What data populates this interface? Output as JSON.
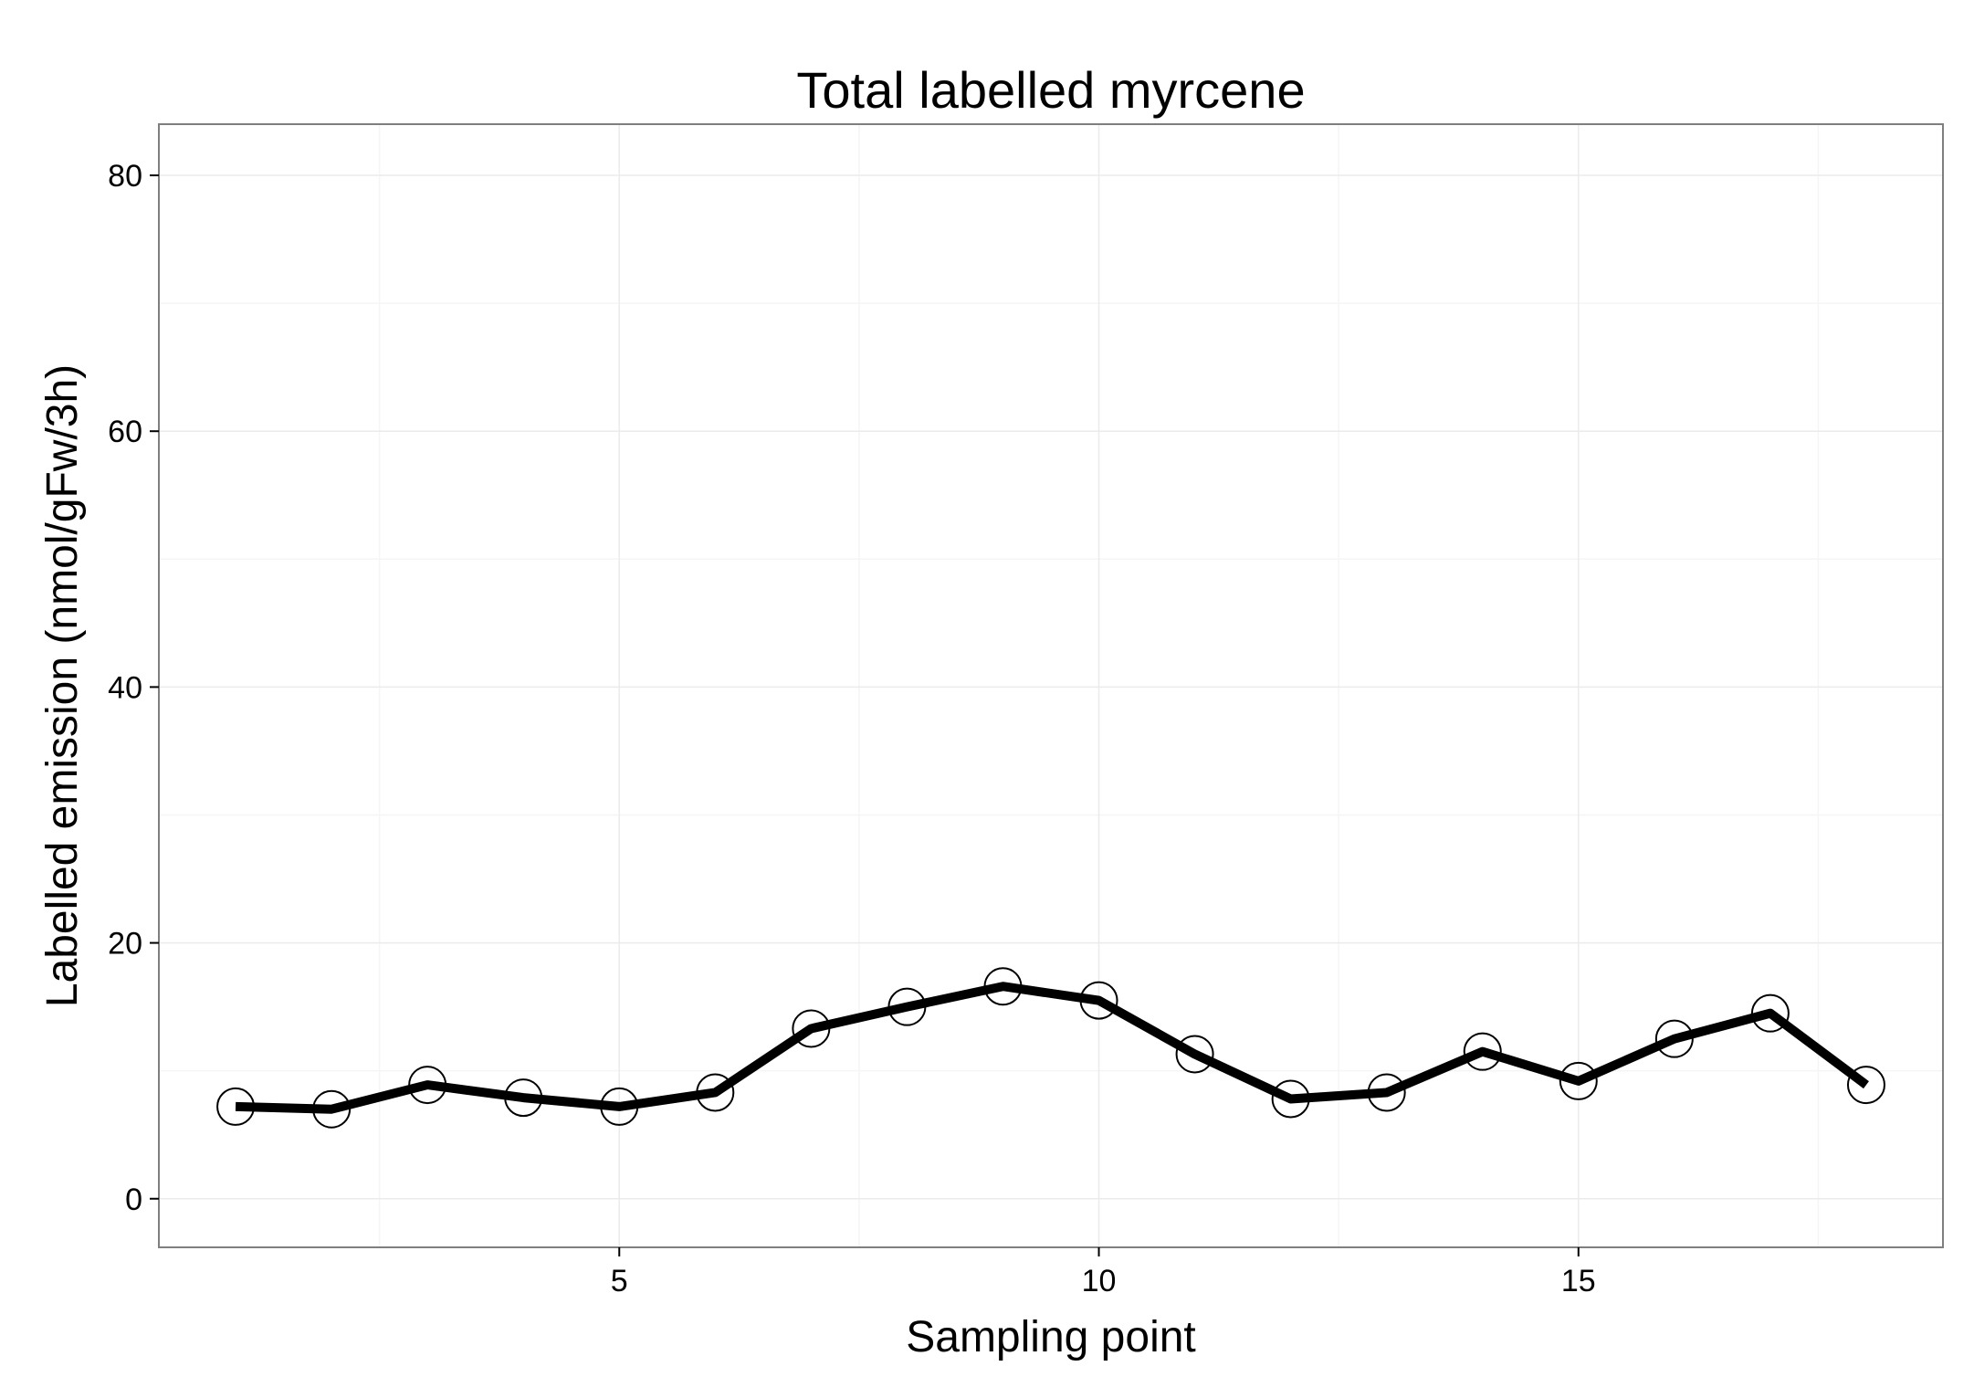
{
  "chart_data": {
    "type": "line",
    "title": "Total labelled myrcene",
    "xlabel": "Sampling point",
    "ylabel": "Labelled emission (nmol/gFw/3h)",
    "xlim": [
      0.2,
      18.8
    ],
    "ylim": [
      -3.8,
      84
    ],
    "x_ticks": [
      5,
      10,
      15
    ],
    "y_ticks": [
      0,
      20,
      40,
      60,
      80
    ],
    "x_minor": [
      2.5,
      7.5,
      12.5,
      17.5
    ],
    "y_minor": [
      10,
      30,
      50,
      70
    ],
    "grid": true,
    "legend": "none",
    "colors": {
      "line": "#000000",
      "marker_stroke": "#000000",
      "grid_major": "#ebebeb",
      "grid_minor": "#f5f5f5",
      "panel_border": "#7f7f7f"
    },
    "series": [
      {
        "x": [
          1,
          2,
          3,
          4,
          5,
          6,
          7,
          8,
          9,
          10,
          11,
          12,
          13,
          14,
          15,
          16,
          17,
          18
        ],
        "values": [
          7.2,
          7.0,
          8.9,
          7.9,
          7.2,
          8.3,
          13.3,
          15.0,
          16.6,
          15.5,
          11.3,
          7.8,
          8.3,
          11.5,
          9.2,
          12.5,
          14.5,
          8.9
        ]
      }
    ]
  }
}
